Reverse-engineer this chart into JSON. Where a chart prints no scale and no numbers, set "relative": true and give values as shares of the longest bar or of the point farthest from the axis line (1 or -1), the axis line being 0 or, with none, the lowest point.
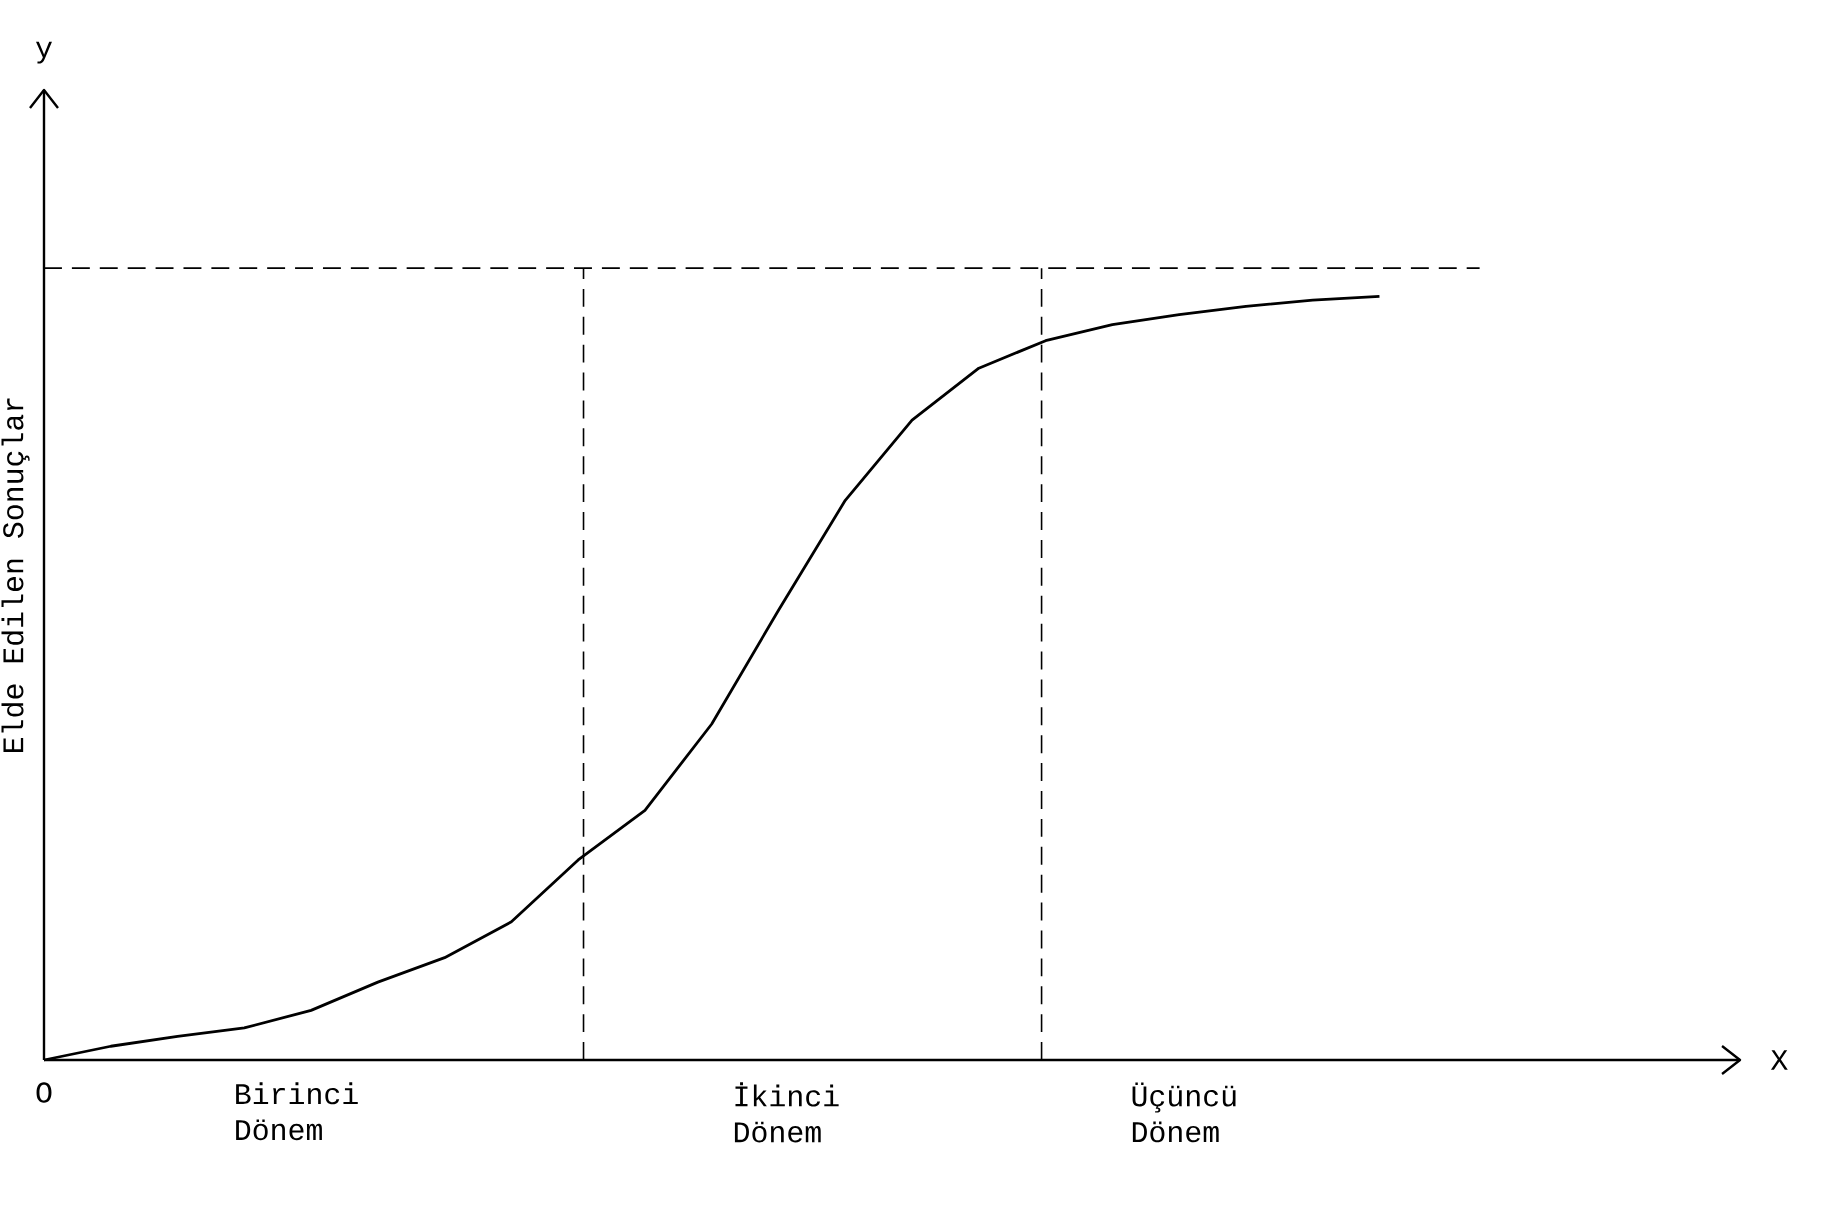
{
  "chart_data": {
    "type": "line",
    "relative": true,
    "color": "#000000",
    "line_style": "solid",
    "ylabel": "Elde Edilen Sonuçlar",
    "annotations": [
      "y",
      "O",
      "X",
      "Birinci Dönem",
      "İkinci Dönem",
      "Üçüncü Dönem"
    ],
    "categories": [
      null,
      null,
      null,
      null,
      null,
      null,
      null,
      null,
      null,
      null,
      null,
      null,
      null,
      null,
      null,
      null,
      null,
      null,
      null,
      null,
      null
    ],
    "values": [
      0,
      0.018,
      0.031,
      0.042,
      0.065,
      0.102,
      0.134,
      0.181,
      0.262,
      0.327,
      0.44,
      0.589,
      0.733,
      0.838,
      0.906,
      0.942,
      0.963,
      0.976,
      0.987,
      0.995,
      1
    ],
    "ref_lines": [
      {
        "axis": "y",
        "value": 1.037,
        "line_style": "dashed"
      }
    ]
  }
}
